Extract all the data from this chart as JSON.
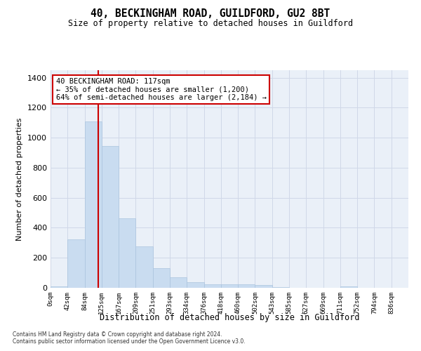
{
  "title": "40, BECKINGHAM ROAD, GUILDFORD, GU2 8BT",
  "subtitle": "Size of property relative to detached houses in Guildford",
  "xlabel": "Distribution of detached houses by size in Guildford",
  "ylabel": "Number of detached properties",
  "footer_line1": "Contains HM Land Registry data © Crown copyright and database right 2024.",
  "footer_line2": "Contains public sector information licensed under the Open Government Licence v3.0.",
  "bin_labels": [
    "0sqm",
    "42sqm",
    "84sqm",
    "125sqm",
    "167sqm",
    "209sqm",
    "251sqm",
    "293sqm",
    "334sqm",
    "376sqm",
    "418sqm",
    "460sqm",
    "502sqm",
    "543sqm",
    "585sqm",
    "627sqm",
    "669sqm",
    "711sqm",
    "752sqm",
    "794sqm",
    "836sqm"
  ],
  "bar_values": [
    8,
    325,
    1110,
    945,
    462,
    275,
    130,
    68,
    38,
    22,
    25,
    25,
    18,
    3,
    0,
    0,
    0,
    10,
    0,
    0,
    0
  ],
  "bar_color": "#c9dcf0",
  "bar_edge_color": "#aac4de",
  "property_line_x": 2.79,
  "annotation_text": "40 BECKINGHAM ROAD: 117sqm\n← 35% of detached houses are smaller (1,200)\n64% of semi-detached houses are larger (2,184) →",
  "annotation_box_color": "#ffffff",
  "annotation_box_edge_color": "#cc0000",
  "red_line_color": "#cc0000",
  "grid_color": "#d0d8e8",
  "background_color": "#eaf0f8",
  "ylim": [
    0,
    1450
  ],
  "yticks": [
    0,
    200,
    400,
    600,
    800,
    1000,
    1200,
    1400
  ]
}
